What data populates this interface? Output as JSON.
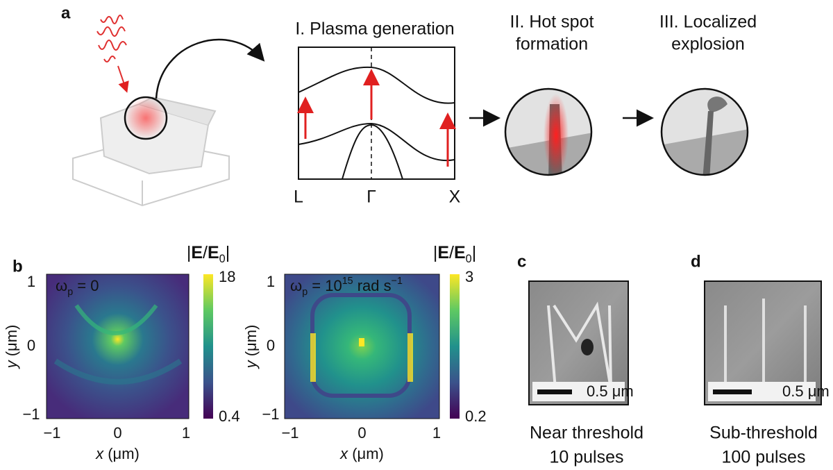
{
  "panel_a": {
    "letter": "a",
    "step_1": "I. Plasma generation",
    "step_2": [
      "II. Hot spot",
      "formation"
    ],
    "step_3": [
      "III. Localized",
      "explosion"
    ],
    "band_labels": [
      "L",
      "Γ",
      "X"
    ]
  },
  "panel_b": {
    "letter": "b",
    "colorbar_title": [
      {
        "text": "|"
      },
      {
        "text": "E",
        "style": "bold"
      },
      {
        "text": "/"
      },
      {
        "text": "E",
        "style": "bold"
      },
      {
        "text": "0",
        "style": "sub"
      },
      {
        "text": "|"
      }
    ],
    "maps": [
      {
        "label": [
          {
            "text": "ω"
          },
          {
            "text": "p",
            "style": "sub"
          },
          {
            "text": " = 0"
          }
        ],
        "colorbar_max": "18",
        "colorbar_min": "0.4"
      },
      {
        "label": [
          {
            "text": "ω"
          },
          {
            "text": "p",
            "style": "sub"
          },
          {
            "text": " = 10"
          },
          {
            "text": "15",
            "style": "sup"
          },
          {
            "text": " rad s"
          },
          {
            "text": "−1",
            "style": "sup"
          }
        ],
        "colorbar_max": "3",
        "colorbar_min": "0.2"
      }
    ],
    "y_ticks": [
      "1",
      "0",
      "−1"
    ],
    "x_ticks": [
      "−1",
      "0",
      "1"
    ],
    "x_label": [
      {
        "text": "x",
        "style": "italic"
      },
      {
        "text": " (μm)"
      }
    ],
    "y_label": [
      {
        "text": "y",
        "style": "italic"
      },
      {
        "text": " (μm)"
      }
    ]
  },
  "panel_c": {
    "letter": "c",
    "scale": "0.5 μm",
    "caption": [
      "Near threshold",
      "10 pulses"
    ]
  },
  "panel_d": {
    "letter": "d",
    "scale": "0.5 μm",
    "caption": [
      "Sub-threshold",
      "100 pulses"
    ]
  }
}
